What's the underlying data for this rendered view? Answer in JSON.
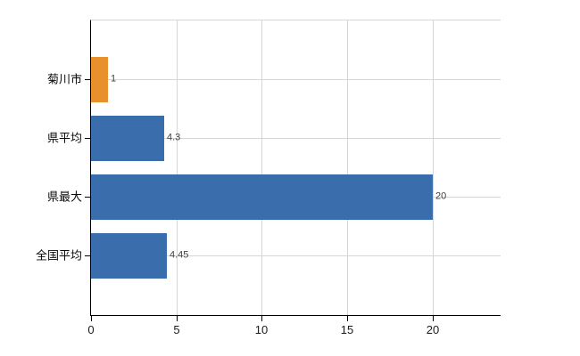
{
  "chart_data": {
    "type": "bar",
    "orientation": "horizontal",
    "title": "",
    "xlabel": "",
    "ylabel": "",
    "categories": [
      "菊川市",
      "県平均",
      "県最大",
      "全国平均"
    ],
    "values": [
      1,
      4.3,
      20,
      4.45
    ],
    "value_labels": [
      "1",
      "4.3",
      "20",
      "4.45"
    ],
    "bar_colors": [
      "#e8902e",
      "#3a6dac",
      "#3a6dac",
      "#3a6dac"
    ],
    "x_ticks": [
      0,
      5,
      10,
      15,
      20
    ],
    "x_tick_labels": [
      "0",
      "5",
      "10",
      "15",
      "20"
    ],
    "xlim": [
      0,
      24
    ],
    "grid": true,
    "legend": false,
    "colors": {
      "gridline": "#d6d6d6",
      "axis": "#000000",
      "category_label_text": "#0a0a0a",
      "tick_label_text": "#1a1a1a",
      "value_label_text": "#404040",
      "background": "#ffffff"
    }
  }
}
